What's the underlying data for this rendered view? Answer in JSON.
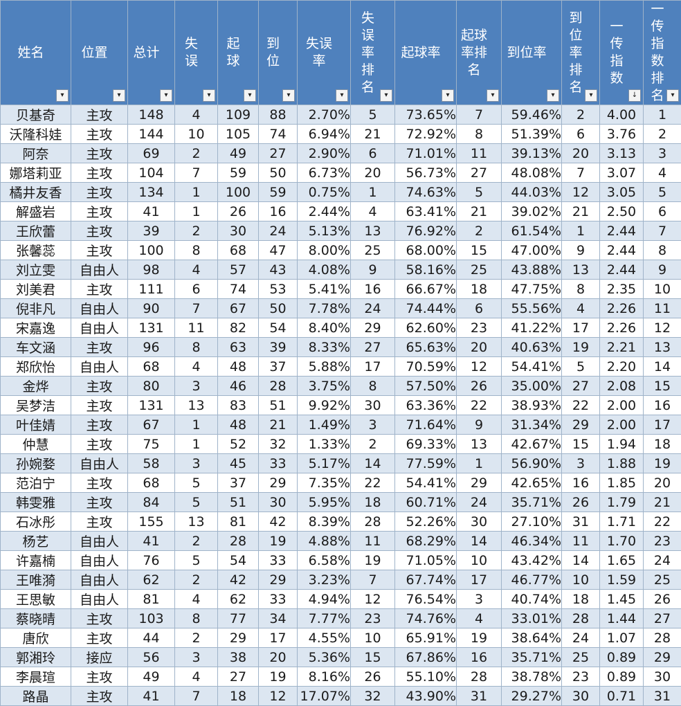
{
  "headers": [
    "姓名",
    "位置",
    "总计",
    "失误",
    "起球",
    "到位",
    "失误率",
    "失误率排名",
    "起球率",
    "起球率排名",
    "到位率",
    "到位率排名",
    "一传指数",
    "一传指数排名"
  ],
  "rows": [
    [
      "贝基奇",
      "主攻",
      "148",
      "4",
      "109",
      "88",
      "2.70%",
      "5",
      "73.65%",
      "7",
      "59.46%",
      "2",
      "4.00",
      "1"
    ],
    [
      "沃隆科娃",
      "主攻",
      "144",
      "10",
      "105",
      "74",
      "6.94%",
      "21",
      "72.92%",
      "8",
      "51.39%",
      "6",
      "3.76",
      "2"
    ],
    [
      "阿奈",
      "主攻",
      "69",
      "2",
      "49",
      "27",
      "2.90%",
      "6",
      "71.01%",
      "11",
      "39.13%",
      "20",
      "3.13",
      "3"
    ],
    [
      "娜塔莉亚",
      "主攻",
      "104",
      "7",
      "59",
      "50",
      "6.73%",
      "20",
      "56.73%",
      "27",
      "48.08%",
      "7",
      "3.07",
      "4"
    ],
    [
      "橘井友香",
      "主攻",
      "134",
      "1",
      "100",
      "59",
      "0.75%",
      "1",
      "74.63%",
      "5",
      "44.03%",
      "12",
      "3.05",
      "5"
    ],
    [
      "解盛岩",
      "主攻",
      "41",
      "1",
      "26",
      "16",
      "2.44%",
      "4",
      "63.41%",
      "21",
      "39.02%",
      "21",
      "2.50",
      "6"
    ],
    [
      "王欣蕾",
      "主攻",
      "39",
      "2",
      "30",
      "24",
      "5.13%",
      "13",
      "76.92%",
      "2",
      "61.54%",
      "1",
      "2.44",
      "7"
    ],
    [
      "张馨蕊",
      "主攻",
      "100",
      "8",
      "68",
      "47",
      "8.00%",
      "25",
      "68.00%",
      "15",
      "47.00%",
      "9",
      "2.44",
      "8"
    ],
    [
      "刘立雯",
      "自由人",
      "98",
      "4",
      "57",
      "43",
      "4.08%",
      "9",
      "58.16%",
      "25",
      "43.88%",
      "13",
      "2.44",
      "9"
    ],
    [
      "刘美君",
      "主攻",
      "111",
      "6",
      "74",
      "53",
      "5.41%",
      "16",
      "66.67%",
      "18",
      "47.75%",
      "8",
      "2.35",
      "10"
    ],
    [
      "倪非凡",
      "自由人",
      "90",
      "7",
      "67",
      "50",
      "7.78%",
      "24",
      "74.44%",
      "6",
      "55.56%",
      "4",
      "2.26",
      "11"
    ],
    [
      "宋嘉逸",
      "自由人",
      "131",
      "11",
      "82",
      "54",
      "8.40%",
      "29",
      "62.60%",
      "23",
      "41.22%",
      "17",
      "2.26",
      "12"
    ],
    [
      "车文涵",
      "主攻",
      "96",
      "8",
      "63",
      "39",
      "8.33%",
      "27",
      "65.63%",
      "20",
      "40.63%",
      "19",
      "2.21",
      "13"
    ],
    [
      "郑欣怡",
      "自由人",
      "68",
      "4",
      "48",
      "37",
      "5.88%",
      "17",
      "70.59%",
      "12",
      "54.41%",
      "5",
      "2.20",
      "14"
    ],
    [
      "金烨",
      "主攻",
      "80",
      "3",
      "46",
      "28",
      "3.75%",
      "8",
      "57.50%",
      "26",
      "35.00%",
      "27",
      "2.08",
      "15"
    ],
    [
      "吴梦洁",
      "主攻",
      "131",
      "13",
      "83",
      "51",
      "9.92%",
      "30",
      "63.36%",
      "22",
      "38.93%",
      "22",
      "2.00",
      "16"
    ],
    [
      "叶佳婧",
      "主攻",
      "67",
      "1",
      "48",
      "21",
      "1.49%",
      "3",
      "71.64%",
      "9",
      "31.34%",
      "29",
      "2.00",
      "17"
    ],
    [
      "仲慧",
      "主攻",
      "75",
      "1",
      "52",
      "32",
      "1.33%",
      "2",
      "69.33%",
      "13",
      "42.67%",
      "15",
      "1.94",
      "18"
    ],
    [
      "孙婉婺",
      "自由人",
      "58",
      "3",
      "45",
      "33",
      "5.17%",
      "14",
      "77.59%",
      "1",
      "56.90%",
      "3",
      "1.88",
      "19"
    ],
    [
      "范泊宁",
      "主攻",
      "68",
      "5",
      "37",
      "29",
      "7.35%",
      "22",
      "54.41%",
      "29",
      "42.65%",
      "16",
      "1.85",
      "20"
    ],
    [
      "韩雯雅",
      "主攻",
      "84",
      "5",
      "51",
      "30",
      "5.95%",
      "18",
      "60.71%",
      "24",
      "35.71%",
      "26",
      "1.79",
      "21"
    ],
    [
      "石冰彤",
      "主攻",
      "155",
      "13",
      "81",
      "42",
      "8.39%",
      "28",
      "52.26%",
      "30",
      "27.10%",
      "31",
      "1.71",
      "22"
    ],
    [
      "杨艺",
      "自由人",
      "41",
      "2",
      "28",
      "19",
      "4.88%",
      "11",
      "68.29%",
      "14",
      "46.34%",
      "11",
      "1.70",
      "23"
    ],
    [
      "许嘉楠",
      "自由人",
      "76",
      "5",
      "54",
      "33",
      "6.58%",
      "19",
      "71.05%",
      "10",
      "43.42%",
      "14",
      "1.65",
      "24"
    ],
    [
      "王唯漪",
      "自由人",
      "62",
      "2",
      "42",
      "29",
      "3.23%",
      "7",
      "67.74%",
      "17",
      "46.77%",
      "10",
      "1.59",
      "25"
    ],
    [
      "王思敏",
      "自由人",
      "81",
      "4",
      "62",
      "33",
      "4.94%",
      "12",
      "76.54%",
      "3",
      "40.74%",
      "18",
      "1.45",
      "26"
    ],
    [
      "蔡晓晴",
      "主攻",
      "103",
      "8",
      "77",
      "34",
      "7.77%",
      "23",
      "74.76%",
      "4",
      "33.01%",
      "28",
      "1.44",
      "27"
    ],
    [
      "唐欣",
      "主攻",
      "44",
      "2",
      "29",
      "17",
      "4.55%",
      "10",
      "65.91%",
      "19",
      "38.64%",
      "24",
      "1.07",
      "28"
    ],
    [
      "郭湘玲",
      "接应",
      "56",
      "3",
      "38",
      "20",
      "5.36%",
      "15",
      "67.86%",
      "16",
      "35.71%",
      "25",
      "0.89",
      "29"
    ],
    [
      "李晨瑄",
      "主攻",
      "49",
      "4",
      "27",
      "19",
      "8.16%",
      "26",
      "55.10%",
      "28",
      "38.78%",
      "23",
      "0.89",
      "30"
    ],
    [
      "路晶",
      "主攻",
      "41",
      "7",
      "18",
      "12",
      "17.07%",
      "32",
      "43.90%",
      "31",
      "29.27%",
      "30",
      "0.71",
      "31"
    ]
  ],
  "pct_columns": [
    6,
    8,
    10
  ],
  "filter_icon": "dropdown-filter-icon",
  "sorted_column": 12,
  "colors": {
    "header_bg": "#4f81bd",
    "band": "#dce6f1",
    "border": "#9fb3c9"
  }
}
